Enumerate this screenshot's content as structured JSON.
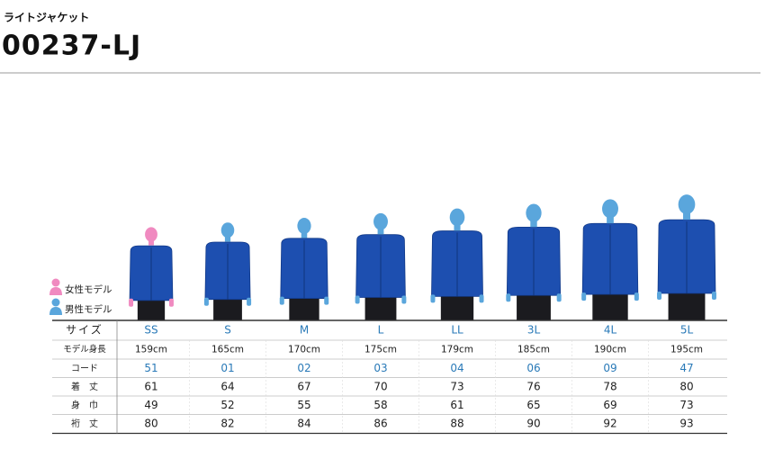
{
  "header": {
    "subtitle": "ライトジャケット",
    "title": "00237-LJ"
  },
  "legend": [
    "女性モデル",
    "男性モデル"
  ],
  "table": {
    "rows": [
      [
        "サイズ",
        "SS",
        "S",
        "M",
        "L",
        "LL",
        "3L",
        "4L",
        "5L"
      ],
      [
        "モデル身長",
        "159cm",
        "165cm",
        "170cm",
        "175cm",
        "179cm",
        "185cm",
        "190cm",
        "195cm"
      ],
      [
        "コード",
        "51",
        "01",
        "02",
        "03",
        "04",
        "06",
        "09",
        "47"
      ],
      [
        "着　丈",
        61,
        64,
        67,
        70,
        73,
        76,
        78,
        80
      ],
      [
        "身　巾",
        49,
        52,
        55,
        58,
        61,
        65,
        69,
        73
      ],
      [
        "裄　丈",
        80,
        82,
        84,
        86,
        88,
        90,
        92,
        93
      ]
    ]
  }
}
